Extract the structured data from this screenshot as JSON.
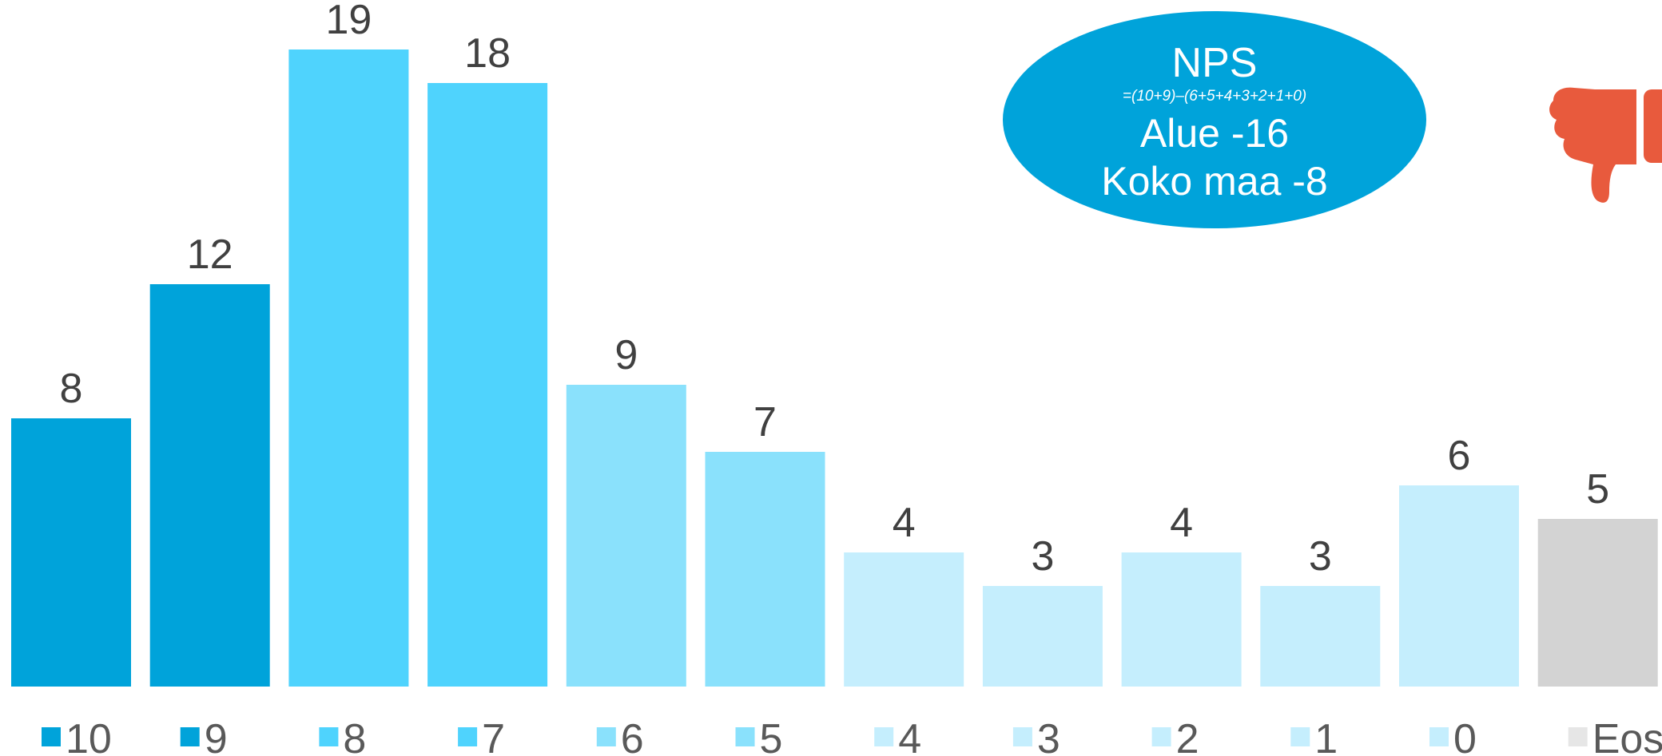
{
  "chart_data": {
    "type": "bar",
    "categories": [
      "10",
      "9",
      "8",
      "7",
      "6",
      "5",
      "4",
      "3",
      "2",
      "1",
      "0",
      "Eos"
    ],
    "values": [
      8,
      12,
      19,
      18,
      9,
      7,
      4,
      3,
      4,
      3,
      6,
      5
    ],
    "colors": [
      "#00a3da",
      "#00a3da",
      "#4fd3fd",
      "#4fd3fd",
      "#8ae1fc",
      "#8ae1fc",
      "#c5eefd",
      "#c5eefd",
      "#c5eefd",
      "#c5eefd",
      "#c5eefd",
      "#d3d3d3"
    ],
    "legend_colors": [
      "#00a3da",
      "#00a3da",
      "#4fd3fd",
      "#4fd3fd",
      "#8ae1fc",
      "#8ae1fc",
      "#c5eefd",
      "#c5eefd",
      "#c5eefd",
      "#c5eefd",
      "#c5eefd",
      "#e6e6e6"
    ],
    "ylim": [
      0,
      20
    ],
    "grid": false,
    "legend_position": "bottom",
    "data_labels": true
  },
  "nps_box": {
    "title": "NPS",
    "formula": "=(10+9)–(6+5+4+3+2+1+0)",
    "line1": "Alue -16",
    "line2": "Koko maa -8",
    "color": "#00a3da"
  },
  "icon": {
    "name": "thumbs-down-icon",
    "color": "#e85a3d"
  }
}
